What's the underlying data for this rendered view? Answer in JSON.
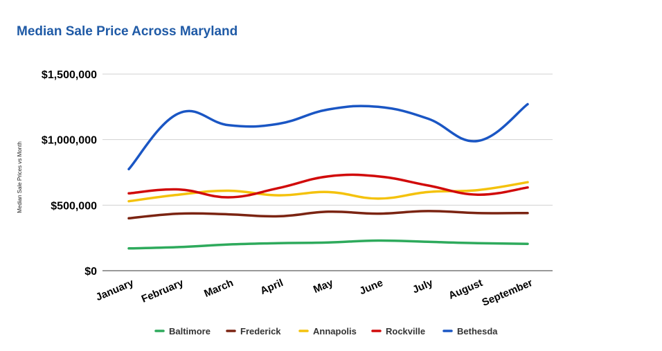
{
  "chart_data": {
    "type": "line",
    "title": "Median Sale Price Across Maryland",
    "xlabel": "",
    "ylabel": "Median Sale Prices vs Month",
    "categories": [
      "January",
      "February",
      "March",
      "April",
      "May",
      "June",
      "July",
      "August",
      "September"
    ],
    "ylim": [
      0,
      1500000
    ],
    "yticks": [
      0,
      500000,
      1000000,
      1500000
    ],
    "ytick_labels": [
      "$0",
      "$500,000",
      "$1,000,000",
      "$1,500,000"
    ],
    "grid": "horizontal",
    "legend_position": "bottom",
    "series": [
      {
        "name": "Baltimore",
        "color": "#2eaa5c",
        "values": [
          170000,
          180000,
          200000,
          210000,
          215000,
          230000,
          220000,
          210000,
          205000
        ]
      },
      {
        "name": "Frederick",
        "color": "#7b2412",
        "values": [
          400000,
          435000,
          430000,
          415000,
          450000,
          435000,
          455000,
          440000,
          440000
        ]
      },
      {
        "name": "Annapolis",
        "color": "#f4c20d",
        "values": [
          530000,
          580000,
          610000,
          575000,
          600000,
          550000,
          600000,
          615000,
          675000
        ]
      },
      {
        "name": "Rockville",
        "color": "#d10a0a",
        "values": [
          590000,
          620000,
          560000,
          630000,
          720000,
          720000,
          650000,
          580000,
          635000
        ]
      },
      {
        "name": "Bethesda",
        "color": "#1a56c4",
        "values": [
          775000,
          1200000,
          1110000,
          1120000,
          1230000,
          1250000,
          1160000,
          990000,
          1270000
        ]
      }
    ]
  }
}
